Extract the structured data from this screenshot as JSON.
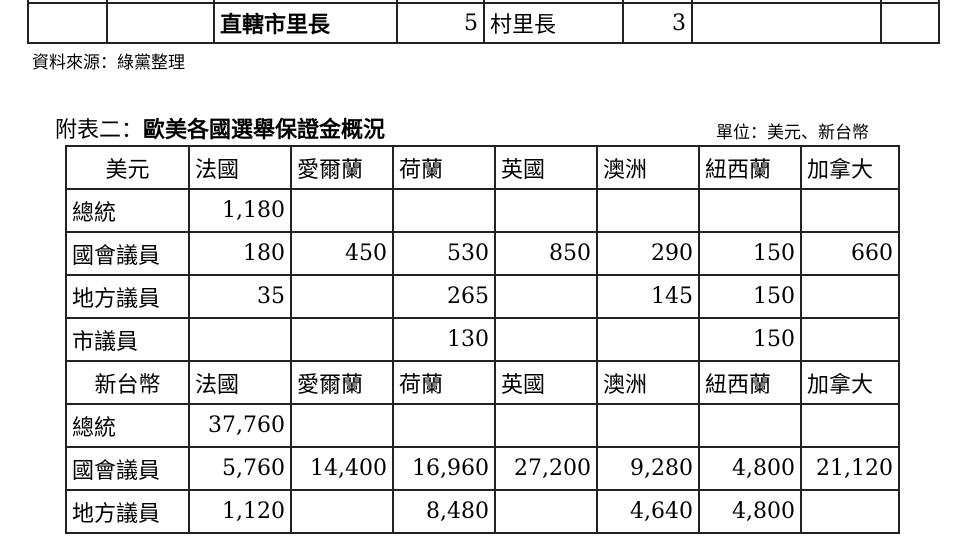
{
  "table1": {
    "rows": [
      [
        "",
        "",
        "",
        "",
        "",
        "",
        "",
        ""
      ],
      [
        "",
        "",
        "直轄市里長",
        "5",
        "村里長",
        "3",
        "",
        ""
      ]
    ]
  },
  "source": "資料來源：綠黨整理",
  "title_prefix": "附表二：",
  "title_main": "歐美各國選舉保證金概況",
  "unit": "單位：美元、新台幣",
  "table2": {
    "rows": [
      [
        "美元",
        "法國",
        "愛爾蘭",
        "荷蘭",
        "英國",
        "澳洲",
        "紐西蘭",
        "加拿大"
      ],
      [
        "總統",
        "1,180",
        "",
        "",
        "",
        "",
        "",
        ""
      ],
      [
        "國會議員",
        "180",
        "450",
        "530",
        "850",
        "290",
        "150",
        "660"
      ],
      [
        "地方議員",
        "35",
        "",
        "265",
        "",
        "145",
        "150",
        ""
      ],
      [
        "市議員",
        "",
        "",
        "130",
        "",
        "",
        "150",
        ""
      ],
      [
        "新台幣",
        "法國",
        "愛爾蘭",
        "荷蘭",
        "英國",
        "澳洲",
        "紐西蘭",
        "加拿大"
      ],
      [
        "總統",
        "37,760",
        "",
        "",
        "",
        "",
        "",
        ""
      ],
      [
        "國會議員",
        "5,760",
        "14,400",
        "16,960",
        "27,200",
        "9,280",
        "4,800",
        "21,120"
      ],
      [
        "地方議員",
        "1,120",
        "",
        "8,480",
        "",
        "4,640",
        "4,800",
        ""
      ]
    ]
  }
}
